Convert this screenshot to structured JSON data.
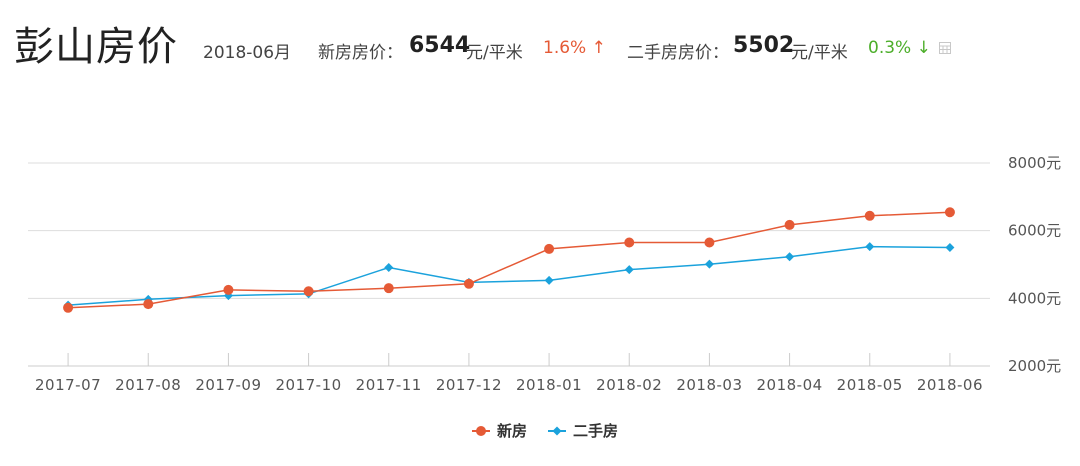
{
  "header": {
    "city_title": "彭山房价",
    "date": "2018-06月",
    "new_label": "新房房价：",
    "new_value": "6544",
    "new_unit": "元/平米",
    "new_change": "1.6% ↑",
    "second_label": "二手房房价：",
    "second_value": "5502",
    "second_unit": "元/平米",
    "second_change": "0.3% ↓",
    "calculator_icon": "calculator-icon"
  },
  "colors": {
    "new": "#e55a36",
    "second": "#1ba2dc",
    "up": "#e55a36",
    "down": "#4cae2a",
    "grid": "#dddddd"
  },
  "chart_data": {
    "type": "line",
    "categories": [
      "2017-07",
      "2017-08",
      "2017-09",
      "2017-10",
      "2017-11",
      "2017-12",
      "2018-01",
      "2018-02",
      "2018-03",
      "2018-04",
      "2018-05",
      "2018-06"
    ],
    "series": [
      {
        "name": "新房",
        "marker": "circle",
        "color": "#e55a36",
        "values": [
          3720,
          3830,
          4250,
          4210,
          4300,
          4430,
          5460,
          5650,
          5650,
          6170,
          6440,
          6544
        ]
      },
      {
        "name": "二手房",
        "marker": "diamond",
        "color": "#1ba2dc",
        "values": [
          3800,
          3970,
          4080,
          4130,
          4910,
          4470,
          4530,
          4850,
          5010,
          5230,
          5530,
          5502
        ]
      }
    ],
    "y_ticks": [
      "2000元",
      "4000元",
      "6000元",
      "8000元"
    ],
    "y_tick_values": [
      2000,
      4000,
      6000,
      8000
    ],
    "ylim": [
      2000,
      8000
    ],
    "y_axis_side": "right",
    "grid": true,
    "legend_position": "bottom-center"
  }
}
